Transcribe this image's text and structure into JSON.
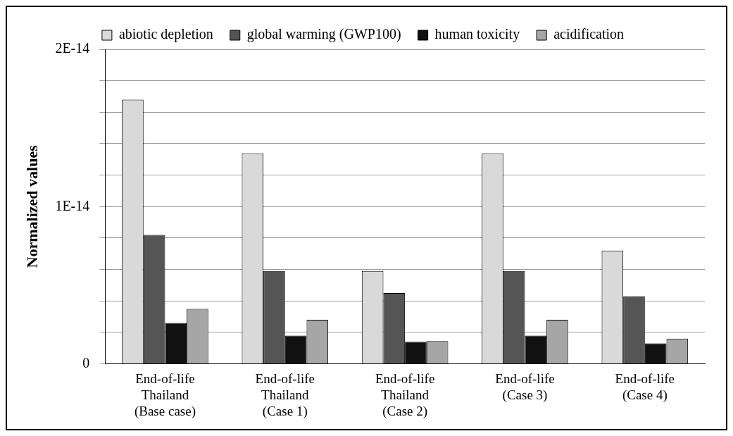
{
  "chart_data": {
    "type": "bar",
    "ylabel": "Normalized values",
    "categories": [
      "End-of-life\nThailand\n(Base case)",
      "End-of-life\nThailand\n(Case 1)",
      "End-of-life\nThailand\n(Case 2)",
      "End-of-life\n(Case 3)",
      "End-of-life\n(Case 4)"
    ],
    "series": [
      {
        "name": "abiotic depletion",
        "color": "#d9d9d9",
        "values": [
          1.68e-14,
          1.34e-14,
          5.9e-15,
          1.34e-14,
          7.2e-15
        ]
      },
      {
        "name": "global warming (GWP100)",
        "color": "#555555",
        "values": [
          8.2e-15,
          5.9e-15,
          4.5e-15,
          5.9e-15,
          4.3e-15
        ]
      },
      {
        "name": "human toxicity",
        "color": "#111111",
        "values": [
          2.6e-15,
          1.8e-15,
          1.4e-15,
          1.8e-15,
          1.3e-15
        ]
      },
      {
        "name": "acidification",
        "color": "#a6a6a6",
        "values": [
          3.5e-15,
          2.8e-15,
          1.45e-15,
          2.8e-15,
          1.6e-15
        ]
      }
    ],
    "ylim": [
      0,
      2e-14
    ],
    "yticks": [
      0,
      {
        "value": 2e-15,
        "label": null
      },
      {
        "value": 4e-15,
        "label": null
      },
      {
        "value": 6e-15,
        "label": null
      },
      {
        "value": 8e-15,
        "label": null
      },
      {
        "value": 1e-14,
        "label": "1E-14"
      },
      {
        "value": 1.2e-14,
        "label": null
      },
      {
        "value": 1.4e-14,
        "label": null
      },
      {
        "value": 1.6e-14,
        "label": null
      },
      {
        "value": 1.8e-14,
        "label": null
      },
      {
        "value": 2e-14,
        "label": "2E-14"
      }
    ],
    "grid": "y",
    "legend": "top"
  }
}
